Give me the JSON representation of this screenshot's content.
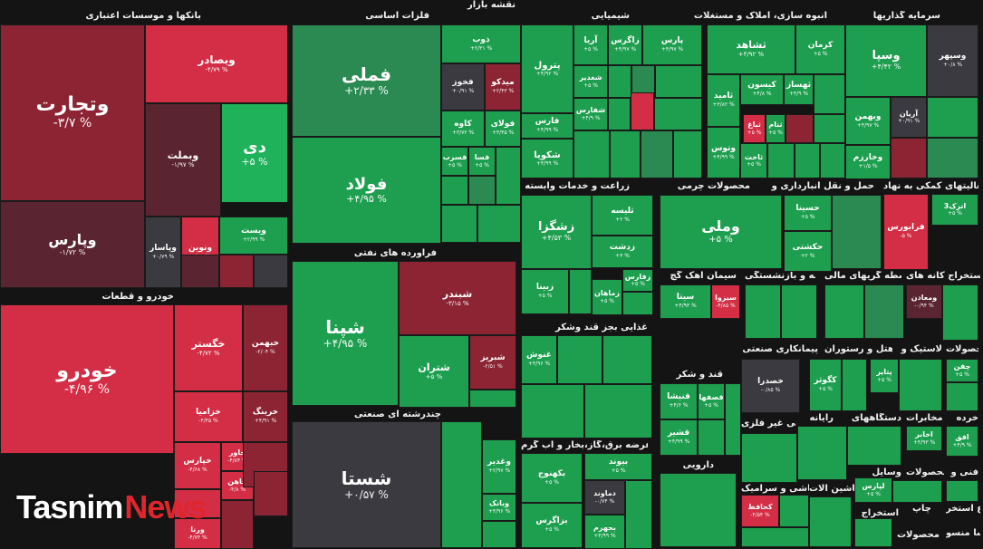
{
  "title": "نقشه بازار",
  "colors": {
    "dg": "#1e9f4f",
    "mg": "#2a8a51",
    "lg": "#1fb25a",
    "gr": "#3a3a40",
    "mr": "#8c2433",
    "rd": "#c8283d",
    "br": "#d32e45",
    "dr": "#5a2530"
  },
  "sectors": [
    {
      "name": "بانکها و موسسات اعتباری"
    },
    {
      "name": "فلزات اساسی"
    },
    {
      "name": "شیمیایی"
    },
    {
      "name": "انبوه سازی، املاک و مستغلات"
    },
    {
      "name": "سرمایه گذاریها"
    },
    {
      "name": "خودرو و قطعات"
    },
    {
      "name": "فرآورده های نفتی"
    },
    {
      "name": "زراعت و خدمات وابسته"
    },
    {
      "name": "محصولات چرمی"
    },
    {
      "name": "حمل و نقل انبارداری و"
    },
    {
      "name": "فعالیتهای کمکی به نهاد"
    },
    {
      "name": "غذایی بجز قند وشکر"
    },
    {
      "name": "سیمان آهک گچ"
    },
    {
      "name": "بیمه و بازنشستگی"
    },
    {
      "name": "واسطه گریهای مالی"
    },
    {
      "name": "استخراج کانه های"
    },
    {
      "name": "چندرشته ای صنعتی"
    },
    {
      "name": "پیمانکاری صنعتی"
    },
    {
      "name": "هتل و رستوران"
    },
    {
      "name": "لاستیک و"
    },
    {
      "name": "محصولات"
    },
    {
      "name": "قند و شکر"
    },
    {
      "name": "رایانه"
    },
    {
      "name": "دستگاههای"
    },
    {
      "name": "مخابرات"
    },
    {
      "name": "خرده"
    },
    {
      "name": "کانی غیر فلزی"
    },
    {
      "name": "عرضه برق،گاز،بخار و آب گرم"
    },
    {
      "name": "دارویی"
    },
    {
      "name": "کاشی و سرامیک"
    },
    {
      "name": "ماشین آلات"
    },
    {
      "name": "وسایل"
    },
    {
      "name": "محصولات"
    },
    {
      "name": "فنی و"
    },
    {
      "name": "استخراج"
    },
    {
      "name": "چاپ"
    },
    {
      "name": "اطلاع استخر"
    },
    {
      "name": "سا منسو"
    },
    {
      "name": "محصولات"
    }
  ],
  "stocks": [
    {
      "name": "وتجارت",
      "change": "-۳/۷ %"
    },
    {
      "name": "وبصادر",
      "change": "-۴/۷۹ %"
    },
    {
      "name": "دی",
      "change": "+۵ %"
    },
    {
      "name": "وبملت",
      "change": "-۱/۹۷ %"
    },
    {
      "name": "وپارس",
      "change": "-۱/۷۲ %"
    },
    {
      "name": "وپاسار",
      "change": "+۰/۷۹ %"
    },
    {
      "name": "ونوین",
      "change": "-۳/۸۵ %"
    },
    {
      "name": "ویست",
      "change": "+۲/۹۹ %"
    },
    {
      "name": "فملی",
      "change": "+۲/۳۳ %"
    },
    {
      "name": "فولاد",
      "change": "+۴/۹۵ %"
    },
    {
      "name": "ذوب",
      "change": "+۲/۳۱ %"
    },
    {
      "name": "فخوز",
      "change": "+۰/۹۱ %"
    },
    {
      "name": "میدکو",
      "change": "+۲/۴۳ %"
    },
    {
      "name": "کاوه",
      "change": "+۳/۷۲ %"
    },
    {
      "name": "فولای",
      "change": "+۴/۴۵ %"
    },
    {
      "name": "فسرب",
      "change": "+۵ %"
    },
    {
      "name": "فسا",
      "change": "+۵ %"
    },
    {
      "name": "پترول",
      "change": "+۴/۹۲ %"
    },
    {
      "name": "آریا",
      "change": "+۵ %"
    },
    {
      "name": "زاگرس",
      "change": "+۴/۹۷ %"
    },
    {
      "name": "پارس",
      "change": "+۴/۹۷ %"
    },
    {
      "name": "شغدیر",
      "change": "+۵ %"
    },
    {
      "name": "شفارس",
      "change": "+۴/۹ %"
    },
    {
      "name": "فارس",
      "change": "+۴/۹۹ %"
    },
    {
      "name": "شکویا",
      "change": "+۴/۹۹ %"
    },
    {
      "name": "ثشاهد",
      "change": "+۴/۹۲ %"
    },
    {
      "name": "کرمان",
      "change": "+۵ %"
    },
    {
      "name": "ثامید",
      "change": "+۳/۸۲ %"
    },
    {
      "name": "کیسون",
      "change": "+۴/۸ %"
    },
    {
      "name": "ثهساز",
      "change": "+۴/۹ %"
    },
    {
      "name": "ثنام",
      "change": "+۵ %"
    },
    {
      "name": "ثباغ",
      "change": "+۵ %"
    },
    {
      "name": "وتوس",
      "change": "+۴/۹۹ %"
    },
    {
      "name": "ثاخت",
      "change": "+۵ %"
    },
    {
      "name": "وسپا",
      "change": "+۴/۴۲ %"
    },
    {
      "name": "وسپهر",
      "change": "+۰/۸ %"
    },
    {
      "name": "وبهمن",
      "change": "+۴/۹۷ %"
    },
    {
      "name": "آریان",
      "change": "+۰/۹۱ %"
    },
    {
      "name": "وخارزم",
      "change": "+۱/۵ %"
    },
    {
      "name": "خودرو",
      "change": "-۴/۹۶ %"
    },
    {
      "name": "خگستر",
      "change": "-۴/۷۲ %"
    },
    {
      "name": "خبهمن",
      "change": "-۲/۰۴ %"
    },
    {
      "name": "خزامیا",
      "change": "-۴/۴۵ %"
    },
    {
      "name": "خرینگ",
      "change": "+۴/۹۱ %"
    },
    {
      "name": "خپارس",
      "change": "-۴/۶۸ %"
    },
    {
      "name": "خاور",
      "change": "-۴/۸۴ %"
    },
    {
      "name": "خاهن",
      "change": "-۴/۸ %"
    },
    {
      "name": "ورنا",
      "change": "-۴/۷۴ %"
    },
    {
      "name": "شپنا",
      "change": "+۴/۹۵ %"
    },
    {
      "name": "شبندر",
      "change": "-۳/۱۵ %"
    },
    {
      "name": "شتران",
      "change": "+۵ %"
    },
    {
      "name": "شبریز",
      "change": "-۲/۵۱ %"
    },
    {
      "name": "شستا",
      "change": "+۰/۵۷ %"
    },
    {
      "name": "وغدیر",
      "change": "+۲/۹۷ %"
    },
    {
      "name": "وبانک",
      "change": "+۴/۹۶ %"
    },
    {
      "name": "زشگزا",
      "change": "+۴/۵۳ %"
    },
    {
      "name": "ثلیسه",
      "change": "+۲ %"
    },
    {
      "name": "زدشت",
      "change": "+۳ %"
    },
    {
      "name": "زبینا",
      "change": "+۵ %"
    },
    {
      "name": "زفارس",
      "change": "+۵ %"
    },
    {
      "name": "زماهان",
      "change": "+۵ %"
    },
    {
      "name": "وملی",
      "change": "+۵ %"
    },
    {
      "name": "حسینا",
      "change": "+۵ %"
    },
    {
      "name": "حکشتی",
      "change": "+۲ %"
    },
    {
      "name": "اترک3",
      "change": "+۵ %"
    },
    {
      "name": "فرابورس",
      "change": "-۵ %"
    },
    {
      "name": "سیتا",
      "change": "+۴/۹۳ %"
    },
    {
      "name": "سیزوا",
      "change": "-۴/۸۵ %"
    },
    {
      "name": "ومعادن",
      "change": "-۰/۹۴ %"
    },
    {
      "name": "غنوش",
      "change": "+۴/۹۶ %"
    },
    {
      "name": "خصدرا",
      "change": "-۰/۸۵ %"
    },
    {
      "name": "کگوثر",
      "change": "+۵ %"
    },
    {
      "name": "پتایر",
      "change": "+۵ %"
    },
    {
      "name": "چفن",
      "change": "+۵ %"
    },
    {
      "name": "قنیشا",
      "change": "+۴/۶ %"
    },
    {
      "name": "قصفها",
      "change": "+۵ %"
    },
    {
      "name": "قشیر",
      "change": "+۴/۹۹ %"
    },
    {
      "name": "اخابر",
      "change": "+۴/۹۳ %"
    },
    {
      "name": "افق",
      "change": "+۴/۹ %"
    },
    {
      "name": "بیوند",
      "change": "+۵ %"
    },
    {
      "name": "بکهنوج",
      "change": "+۵ %"
    },
    {
      "name": "دماوند",
      "change": "-۰/۷۴ %"
    },
    {
      "name": "بزاگرس",
      "change": "+۵ %"
    },
    {
      "name": "بجهرم",
      "change": "+۴/۹۹ %"
    },
    {
      "name": "کحافظ",
      "change": "-۴/۵۴ %"
    },
    {
      "name": "لپارس",
      "change": "+۵ %"
    }
  ],
  "brand": {
    "part1": "Tasnim",
    "part2": "News"
  }
}
